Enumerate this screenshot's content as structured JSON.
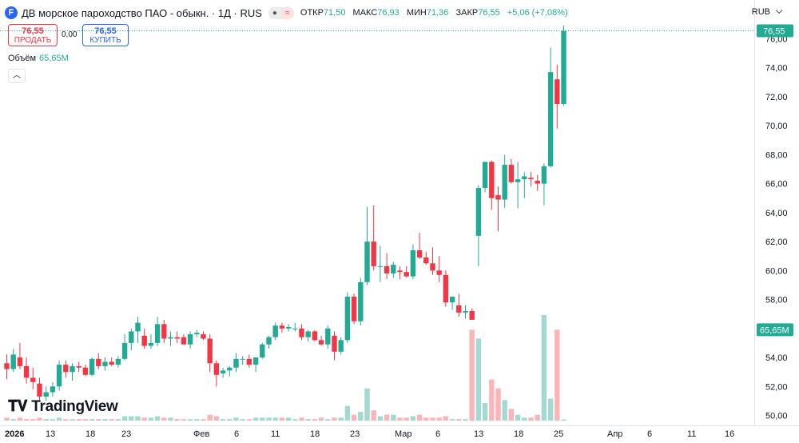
{
  "header": {
    "logo_icon": "company-logo-icon",
    "title": "ДВ морское пароходство ПАО - обыкн. · 1Д · RUS",
    "ohlc": [
      {
        "label": "ОТКР",
        "value": "71,50"
      },
      {
        "label": "МАКС",
        "value": "76,93"
      },
      {
        "label": "МИН",
        "value": "71,36"
      },
      {
        "label": "ЗАКР",
        "value": "76,55"
      },
      {
        "label": "",
        "value": "+5,06 (+7,08%)"
      }
    ],
    "currency": "RUB"
  },
  "trade": {
    "sell_price": "76,55",
    "sell_label": "ПРОДАТЬ",
    "spread": "0,00",
    "buy_price": "76,55",
    "buy_label": "КУПИТЬ"
  },
  "volume_legend": {
    "label": "Объём",
    "value": "65,65M"
  },
  "branding": {
    "text": "TradingView"
  },
  "colors": {
    "up": "#22ab94",
    "down": "#f23645",
    "up_volume": "#a4d9d2",
    "down_volume": "#f9b5b8",
    "accent": "#2962ff"
  },
  "chart_data": {
    "type": "candlestick",
    "price_axis": {
      "min": 49.5,
      "max": 77.6,
      "ticks": [
        "76,00",
        "74,00",
        "72,00",
        "70,00",
        "68,00",
        "66,00",
        "64,00",
        "62,00",
        "60,00",
        "58,00",
        "56,00",
        "54,00",
        "52,00",
        "50,00"
      ]
    },
    "time_axis": {
      "labels": [
        "2026",
        "13",
        "18",
        "23",
        "Фев",
        "6",
        "11",
        "18",
        "23",
        "Мар",
        "6",
        "13",
        "18",
        "25",
        "Апр",
        "6",
        "11",
        "16"
      ]
    },
    "last_price_label": "76,55",
    "last_volume_label": "65,65M",
    "candles": [
      {
        "o": 53.6,
        "h": 54.2,
        "l": 52.5,
        "c": 53.2
      },
      {
        "o": 53.2,
        "h": 54.6,
        "l": 53.0,
        "c": 54.2
      },
      {
        "o": 54.0,
        "h": 55.0,
        "l": 53.2,
        "c": 53.4
      },
      {
        "o": 53.4,
        "h": 54.0,
        "l": 52.2,
        "c": 52.6
      },
      {
        "o": 52.6,
        "h": 53.3,
        "l": 51.8,
        "c": 52.3
      },
      {
        "o": 52.2,
        "h": 52.6,
        "l": 51.0,
        "c": 51.3
      },
      {
        "o": 51.3,
        "h": 52.0,
        "l": 51.0,
        "c": 51.6
      },
      {
        "o": 51.6,
        "h": 52.3,
        "l": 51.3,
        "c": 52.0
      },
      {
        "o": 52.0,
        "h": 53.8,
        "l": 51.7,
        "c": 53.5
      },
      {
        "o": 53.5,
        "h": 53.8,
        "l": 52.6,
        "c": 53.0
      },
      {
        "o": 53.0,
        "h": 53.6,
        "l": 52.4,
        "c": 53.4
      },
      {
        "o": 53.4,
        "h": 53.7,
        "l": 53.0,
        "c": 53.3
      },
      {
        "o": 53.3,
        "h": 53.5,
        "l": 52.7,
        "c": 52.8
      },
      {
        "o": 52.8,
        "h": 54.0,
        "l": 52.7,
        "c": 53.9
      },
      {
        "o": 53.9,
        "h": 54.3,
        "l": 53.2,
        "c": 53.4
      },
      {
        "o": 53.4,
        "h": 54.0,
        "l": 53.1,
        "c": 53.7
      },
      {
        "o": 53.7,
        "h": 54.0,
        "l": 53.4,
        "c": 53.5
      },
      {
        "o": 53.5,
        "h": 54.1,
        "l": 53.3,
        "c": 53.9
      },
      {
        "o": 53.9,
        "h": 55.6,
        "l": 53.8,
        "c": 55.0
      },
      {
        "o": 55.0,
        "h": 56.0,
        "l": 54.5,
        "c": 55.8
      },
      {
        "o": 55.8,
        "h": 56.8,
        "l": 55.0,
        "c": 56.4
      },
      {
        "o": 55.5,
        "h": 56.0,
        "l": 54.6,
        "c": 54.8
      },
      {
        "o": 54.8,
        "h": 55.6,
        "l": 54.6,
        "c": 55.0
      },
      {
        "o": 55.0,
        "h": 56.8,
        "l": 54.8,
        "c": 56.3
      },
      {
        "o": 56.3,
        "h": 56.6,
        "l": 55.0,
        "c": 55.3
      },
      {
        "o": 55.3,
        "h": 55.8,
        "l": 54.8,
        "c": 55.4
      },
      {
        "o": 55.4,
        "h": 55.8,
        "l": 55.0,
        "c": 55.3
      },
      {
        "o": 55.4,
        "h": 55.6,
        "l": 54.9,
        "c": 54.9
      },
      {
        "o": 54.9,
        "h": 55.8,
        "l": 54.6,
        "c": 55.6
      },
      {
        "o": 55.6,
        "h": 55.9,
        "l": 55.4,
        "c": 55.7
      },
      {
        "o": 55.6,
        "h": 55.8,
        "l": 55.2,
        "c": 55.3
      },
      {
        "o": 55.3,
        "h": 55.6,
        "l": 53.0,
        "c": 53.6
      },
      {
        "o": 53.6,
        "h": 53.8,
        "l": 52.0,
        "c": 52.8
      },
      {
        "o": 52.9,
        "h": 53.3,
        "l": 52.6,
        "c": 53.1
      },
      {
        "o": 53.1,
        "h": 53.4,
        "l": 52.7,
        "c": 53.3
      },
      {
        "o": 53.3,
        "h": 54.3,
        "l": 53.0,
        "c": 53.9
      },
      {
        "o": 53.9,
        "h": 54.1,
        "l": 53.5,
        "c": 53.9
      },
      {
        "o": 53.9,
        "h": 54.2,
        "l": 53.3,
        "c": 53.5
      },
      {
        "o": 53.5,
        "h": 54.0,
        "l": 53.0,
        "c": 54.0
      },
      {
        "o": 54.0,
        "h": 55.0,
        "l": 53.9,
        "c": 54.9
      },
      {
        "o": 54.9,
        "h": 55.5,
        "l": 54.6,
        "c": 55.4
      },
      {
        "o": 55.4,
        "h": 56.4,
        "l": 55.2,
        "c": 56.2
      },
      {
        "o": 56.2,
        "h": 56.4,
        "l": 55.7,
        "c": 56.0
      },
      {
        "o": 56.0,
        "h": 56.3,
        "l": 55.8,
        "c": 56.1
      },
      {
        "o": 56.0,
        "h": 56.4,
        "l": 55.8,
        "c": 56.0
      },
      {
        "o": 56.0,
        "h": 56.3,
        "l": 55.2,
        "c": 55.4
      },
      {
        "o": 55.4,
        "h": 55.9,
        "l": 55.1,
        "c": 55.8
      },
      {
        "o": 55.8,
        "h": 55.9,
        "l": 55.1,
        "c": 55.2
      },
      {
        "o": 55.2,
        "h": 55.5,
        "l": 54.8,
        "c": 54.9
      },
      {
        "o": 54.9,
        "h": 56.2,
        "l": 54.6,
        "c": 56.0
      },
      {
        "o": 55.5,
        "h": 55.8,
        "l": 53.8,
        "c": 54.4
      },
      {
        "o": 54.4,
        "h": 55.4,
        "l": 54.2,
        "c": 55.2
      },
      {
        "o": 55.2,
        "h": 58.5,
        "l": 55.0,
        "c": 58.2
      },
      {
        "o": 58.2,
        "h": 58.4,
        "l": 56.3,
        "c": 56.5
      },
      {
        "o": 56.5,
        "h": 59.5,
        "l": 56.2,
        "c": 59.2
      },
      {
        "o": 59.2,
        "h": 64.4,
        "l": 59.0,
        "c": 62.0
      },
      {
        "o": 62.0,
        "h": 64.5,
        "l": 60.0,
        "c": 60.3
      },
      {
        "o": 60.3,
        "h": 61.7,
        "l": 59.2,
        "c": 60.3
      },
      {
        "o": 60.3,
        "h": 61.2,
        "l": 59.4,
        "c": 59.8
      },
      {
        "o": 59.8,
        "h": 60.6,
        "l": 59.5,
        "c": 60.4
      },
      {
        "o": 60.0,
        "h": 60.3,
        "l": 59.4,
        "c": 59.9
      },
      {
        "o": 59.9,
        "h": 60.3,
        "l": 59.5,
        "c": 59.6
      },
      {
        "o": 59.6,
        "h": 61.8,
        "l": 59.4,
        "c": 61.4
      },
      {
        "o": 61.4,
        "h": 62.6,
        "l": 60.8,
        "c": 60.9
      },
      {
        "o": 60.9,
        "h": 61.3,
        "l": 60.4,
        "c": 60.5
      },
      {
        "o": 60.5,
        "h": 61.6,
        "l": 59.7,
        "c": 60.0
      },
      {
        "o": 60.0,
        "h": 61.0,
        "l": 59.2,
        "c": 59.7
      },
      {
        "o": 59.7,
        "h": 60.0,
        "l": 57.5,
        "c": 57.8
      },
      {
        "o": 57.8,
        "h": 58.0,
        "l": 57.3,
        "c": 58.2
      },
      {
        "o": 57.6,
        "h": 58.4,
        "l": 56.8,
        "c": 57.1
      },
      {
        "o": 57.1,
        "h": 57.6,
        "l": 56.7,
        "c": 57.2
      },
      {
        "o": 57.2,
        "h": 57.4,
        "l": 56.6,
        "c": 56.6
      },
      {
        "o": 62.4,
        "h": 65.9,
        "l": 60.3,
        "c": 65.7
      },
      {
        "o": 65.7,
        "h": 67.5,
        "l": 65.4,
        "c": 67.5
      },
      {
        "o": 67.5,
        "h": 67.6,
        "l": 64.2,
        "c": 65.0
      },
      {
        "o": 65.2,
        "h": 65.8,
        "l": 62.7,
        "c": 64.9
      },
      {
        "o": 64.9,
        "h": 68.0,
        "l": 64.3,
        "c": 67.3
      },
      {
        "o": 67.3,
        "h": 67.7,
        "l": 66.0,
        "c": 66.1
      },
      {
        "o": 66.1,
        "h": 67.5,
        "l": 64.3,
        "c": 66.3
      },
      {
        "o": 66.3,
        "h": 66.8,
        "l": 65.0,
        "c": 66.5
      },
      {
        "o": 66.4,
        "h": 66.8,
        "l": 65.8,
        "c": 66.3
      },
      {
        "o": 66.2,
        "h": 66.6,
        "l": 65.5,
        "c": 66.0
      },
      {
        "o": 66.0,
        "h": 67.4,
        "l": 64.5,
        "c": 67.2
      },
      {
        "o": 67.2,
        "h": 75.4,
        "l": 67.1,
        "c": 73.7
      },
      {
        "o": 73.2,
        "h": 74.2,
        "l": 69.8,
        "c": 71.5
      },
      {
        "o": 71.5,
        "h": 76.93,
        "l": 71.36,
        "c": 76.55
      }
    ],
    "volumes": [
      2,
      1,
      2,
      1,
      1,
      2,
      1,
      1,
      2,
      1,
      1,
      1,
      1,
      1,
      1,
      1,
      1,
      1,
      3,
      3,
      3,
      2,
      2,
      3,
      2,
      2,
      1,
      1,
      1,
      1,
      1,
      4,
      3,
      1,
      1,
      2,
      1,
      1,
      2,
      2,
      2,
      2,
      2,
      2,
      1,
      2,
      1,
      1,
      2,
      1,
      2,
      2,
      10,
      4,
      6,
      22,
      7,
      3,
      4,
      4,
      2,
      2,
      3,
      4,
      2,
      2,
      2,
      3,
      1,
      1,
      1,
      62,
      56,
      12,
      28,
      22,
      14,
      8,
      4,
      2,
      2,
      4,
      72,
      15,
      62
    ]
  }
}
